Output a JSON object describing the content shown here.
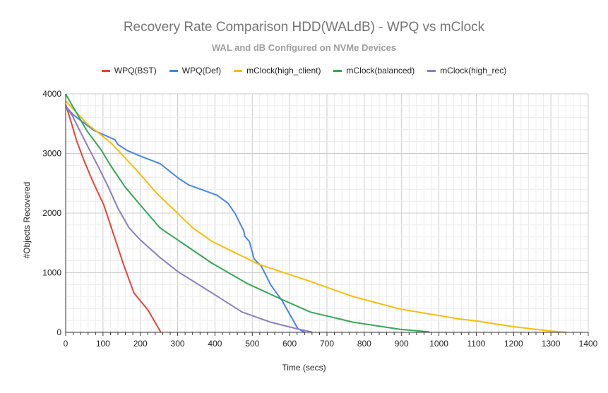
{
  "chart_data": {
    "type": "line",
    "title": "Recovery Rate Comparison HDD(WALdB) - WPQ vs mClock",
    "subtitle": "WAL and dB Configured on NVMe Devices",
    "xlabel": "Time (secs)",
    "ylabel": "#Objects Recovered",
    "xlim": [
      0,
      1400
    ],
    "ylim": [
      0,
      4000
    ],
    "xticks": [
      0,
      100,
      200,
      300,
      400,
      500,
      600,
      700,
      800,
      900,
      1000,
      1100,
      1200,
      1300,
      1400
    ],
    "yticks": [
      0,
      1000,
      2000,
      3000,
      4000
    ],
    "grid": true,
    "legend_position": "top",
    "series": [
      {
        "name": "WPQ(BST)",
        "color": "#ea4335",
        "points": [
          [
            0,
            3820
          ],
          [
            13,
            3560
          ],
          [
            30,
            3200
          ],
          [
            51,
            2850
          ],
          [
            75,
            2500
          ],
          [
            102,
            2140
          ],
          [
            127,
            1670
          ],
          [
            155,
            1140
          ],
          [
            183,
            660
          ],
          [
            221,
            370
          ],
          [
            255,
            0
          ]
        ]
      },
      {
        "name": "WPQ(Def)",
        "color": "#4285f4",
        "points": [
          [
            0,
            3790
          ],
          [
            20,
            3650
          ],
          [
            76,
            3385
          ],
          [
            132,
            3230
          ],
          [
            140,
            3150
          ],
          [
            165,
            3050
          ],
          [
            202,
            2950
          ],
          [
            253,
            2830
          ],
          [
            303,
            2580
          ],
          [
            329,
            2475
          ],
          [
            405,
            2300
          ],
          [
            435,
            2165
          ],
          [
            454,
            1990
          ],
          [
            477,
            1705
          ],
          [
            480,
            1610
          ],
          [
            492,
            1525
          ],
          [
            505,
            1230
          ],
          [
            524,
            1110
          ],
          [
            549,
            800
          ],
          [
            581,
            520
          ],
          [
            605,
            250
          ],
          [
            622,
            60
          ],
          [
            640,
            0
          ]
        ]
      },
      {
        "name": "mClock(high_client)",
        "color": "#fbbc04",
        "points": [
          [
            0,
            3880
          ],
          [
            57,
            3500
          ],
          [
            121,
            3180
          ],
          [
            184,
            2760
          ],
          [
            246,
            2320
          ],
          [
            341,
            1750
          ],
          [
            392,
            1525
          ],
          [
            518,
            1140
          ],
          [
            643,
            880
          ],
          [
            770,
            600
          ],
          [
            896,
            390
          ],
          [
            1054,
            225
          ],
          [
            1100,
            190
          ],
          [
            1200,
            95
          ],
          [
            1300,
            20
          ],
          [
            1340,
            0
          ]
        ]
      },
      {
        "name": "mClock(balanced)",
        "color": "#34a853",
        "points": [
          [
            0,
            4000
          ],
          [
            4,
            3950
          ],
          [
            32,
            3650
          ],
          [
            57,
            3380
          ],
          [
            95,
            3060
          ],
          [
            121,
            2790
          ],
          [
            159,
            2440
          ],
          [
            202,
            2120
          ],
          [
            253,
            1750
          ],
          [
            392,
            1160
          ],
          [
            486,
            820
          ],
          [
            581,
            545
          ],
          [
            656,
            340
          ],
          [
            770,
            170
          ],
          [
            896,
            50
          ],
          [
            972,
            10
          ],
          [
            975,
            0
          ]
        ]
      },
      {
        "name": "mClock(high_rec)",
        "color": "#8e7cc3",
        "points": [
          [
            0,
            3800
          ],
          [
            19,
            3620
          ],
          [
            38,
            3380
          ],
          [
            64,
            3060
          ],
          [
            89,
            2760
          ],
          [
            114,
            2440
          ],
          [
            140,
            2080
          ],
          [
            170,
            1750
          ],
          [
            200,
            1550
          ],
          [
            250,
            1270
          ],
          [
            300,
            1020
          ],
          [
            392,
            660
          ],
          [
            473,
            340
          ],
          [
            549,
            170
          ],
          [
            619,
            60
          ],
          [
            656,
            10
          ],
          [
            660,
            0
          ]
        ]
      }
    ]
  }
}
